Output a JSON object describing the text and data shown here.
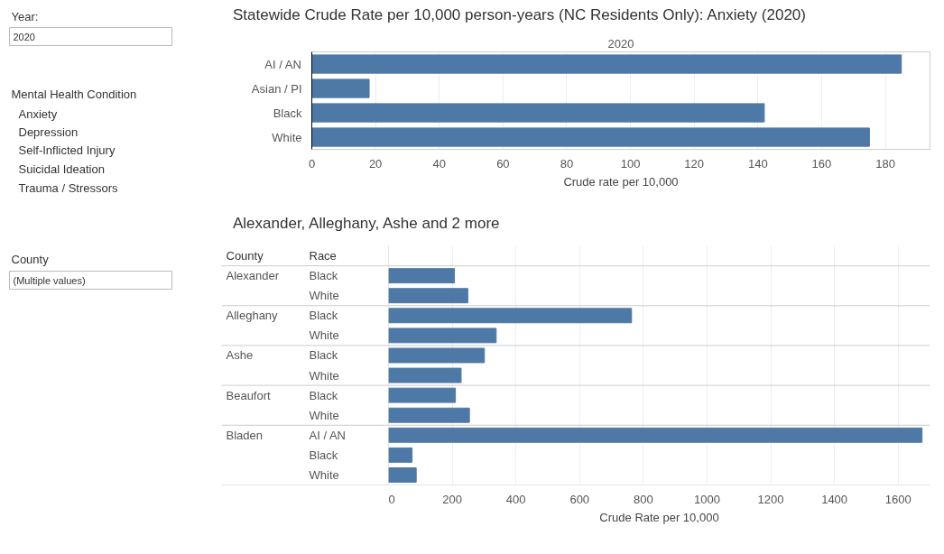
{
  "chart_data": [
    {
      "type": "other",
      "annotations": [
        "Year:",
        "2020",
        "Mental Health Condition",
        "Anxiety",
        "Depression",
        "Self-Inflicted Injury",
        "Suicidal Ideation",
        "Trauma / Stressors",
        "County",
        "(Multiple values)"
      ]
    },
    {
      "type": "bar",
      "orientation": "horizontal",
      "title": "Statewide Crude Rate per 10,000 person-years (NC Residents Only): Anxiety (2020)",
      "annotations": [
        "2020"
      ],
      "xlabel": "Crude rate per 10,000",
      "categories": [
        "AI / AN",
        "Asian / PI",
        "Black",
        "White"
      ],
      "values": [
        185,
        18,
        142,
        175
      ],
      "color": "#4e79a7",
      "xlim": [
        0,
        194
      ],
      "xticks": [
        0,
        20,
        40,
        60,
        80,
        100,
        120,
        140,
        160,
        180
      ],
      "grid": "x"
    },
    {
      "type": "bar",
      "orientation": "horizontal",
      "title": "Alexander, Alleghany, Ashe and 2 more",
      "annotations": [
        "County",
        "Race",
        "Alexander",
        "Alleghany",
        "Ashe",
        "Beaufort",
        "Bladen"
      ],
      "xlabel": "Crude Rate per 10,000",
      "categories": [
        "Black",
        "White",
        "Black",
        "White",
        "Black",
        "White",
        "Black",
        "White",
        "AI / AN",
        "Black",
        "White"
      ],
      "values": [
        207,
        249,
        763,
        338,
        301,
        228,
        210,
        254,
        1675,
        74,
        87
      ],
      "color": "#4e79a7",
      "xlim": [
        0,
        1700
      ],
      "xticks": [
        0,
        200,
        400,
        600,
        800,
        1000,
        1200,
        1400,
        1600
      ],
      "grid": "x"
    }
  ]
}
